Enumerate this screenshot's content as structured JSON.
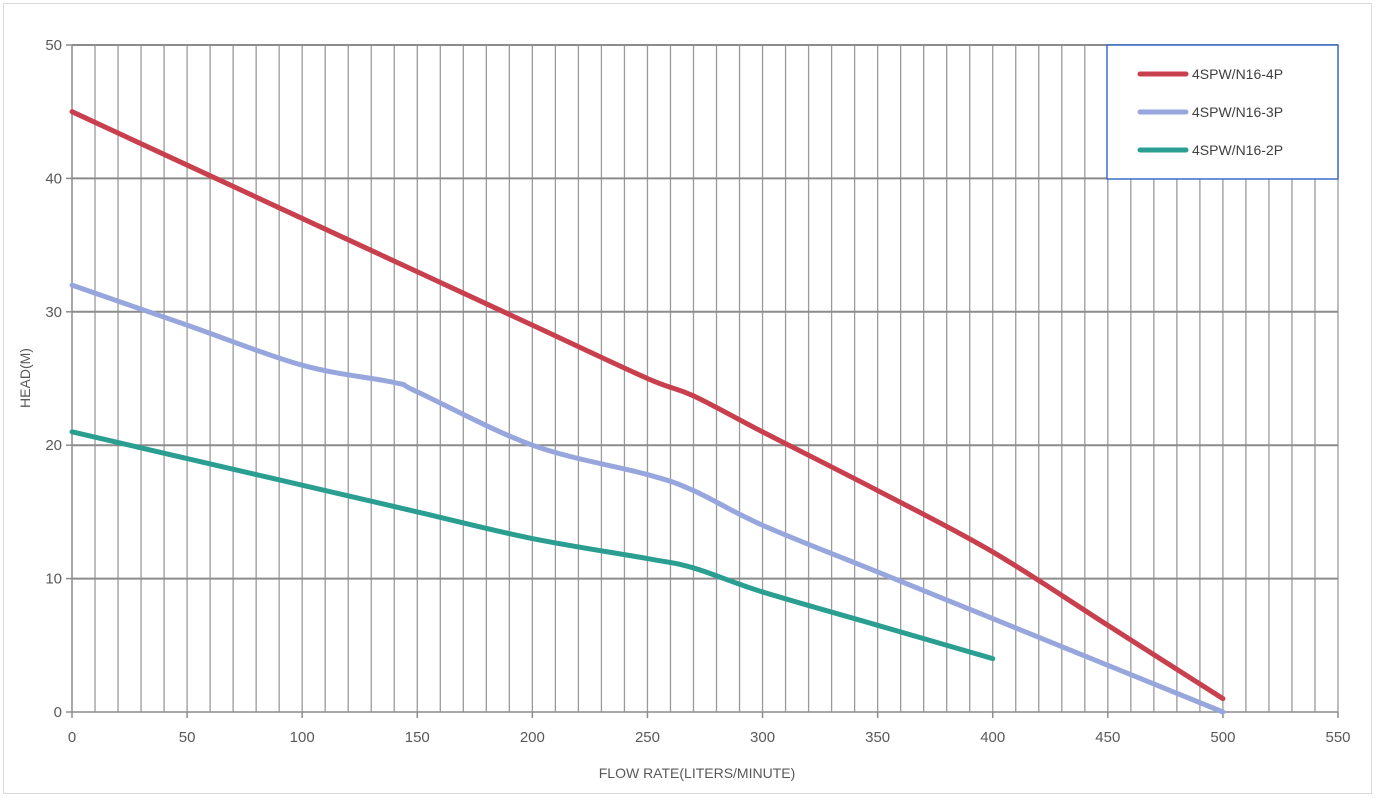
{
  "chart_data": {
    "type": "line",
    "title": "",
    "xlabel": "FLOW RATE(LITERS/MINUTE)",
    "ylabel": "HEAD(M)",
    "xlim": [
      0,
      550
    ],
    "ylim": [
      0,
      50
    ],
    "x_ticks": [
      "0",
      "50",
      "100",
      "150",
      "200",
      "250",
      "300",
      "350",
      "400",
      "450",
      "500",
      "550"
    ],
    "y_ticks": [
      "0",
      "10",
      "20",
      "30",
      "40",
      "50"
    ],
    "grid": true,
    "legend_position": "top-right",
    "series": [
      {
        "name": "4SPW/N16-4P",
        "color": "#c8404e",
        "x": [
          0,
          50,
          100,
          150,
          200,
          250,
          270,
          300,
          350,
          400,
          450,
          500
        ],
        "y": [
          45,
          41,
          37,
          33,
          29,
          25,
          23.7,
          21,
          16.6,
          12,
          6.5,
          1
        ]
      },
      {
        "name": "4SPW/N16-3P",
        "color": "#97a6dc",
        "x": [
          0,
          50,
          100,
          140,
          150,
          200,
          250,
          270,
          300,
          350,
          400,
          450,
          500
        ],
        "y": [
          32,
          29,
          26,
          24.7,
          24,
          20,
          17.8,
          16.6,
          14,
          10.5,
          7,
          3.5,
          0
        ]
      },
      {
        "name": "4SPW/N16-2P",
        "color": "#2a9e90",
        "x": [
          0,
          50,
          100,
          150,
          200,
          250,
          270,
          300,
          350,
          400
        ],
        "y": [
          21,
          19,
          17,
          15,
          13,
          11.5,
          10.8,
          9,
          6.5,
          4
        ]
      }
    ]
  }
}
